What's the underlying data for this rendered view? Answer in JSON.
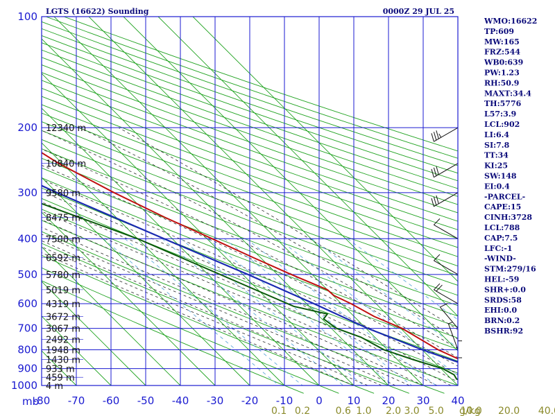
{
  "header": {
    "station": "LGTS (16622) Sounding",
    "time": "0000Z 29 JUL 25"
  },
  "indices": [
    "WMO:16622",
    "TP:609",
    "MW:165",
    "FRZ:544",
    "WB0:639",
    "PW:1.23",
    "RH:50.9",
    "MAXT:34.4",
    "TH:5776",
    "L57:3.9",
    "LCL:902",
    "LI:6.4",
    "SI:7.8",
    "TT:34",
    "KI:25",
    "SW:148",
    "EI:0.4",
    "-PARCEL-",
    "CAPE:15",
    "CINH:3728",
    "LCL:788",
    "CAP:7.5",
    "LFC:-1",
    "-WIND-",
    "STM:279/16",
    "HEL:-59",
    "SHR+:0.0",
    "SRDS:58",
    "EHI:0.0",
    "BRN:0.2",
    "BSHR:92"
  ],
  "colors": {
    "grid": "#1a1ad0",
    "dry_adiabat": "#1fa21f",
    "moist_adiabat": "#2a2a2a",
    "mixing_ratio": "#5fa8d8",
    "temperature": "#c01010",
    "dewpoint": "#0a5a0a",
    "parcel": "#1a2ab0",
    "text": "#0b0b7a"
  },
  "chart_data": {
    "type": "skew-t",
    "title": "LGTS (16622) Sounding",
    "pressure_unit_label": "mb",
    "pressure_levels": [
      100,
      200,
      300,
      400,
      500,
      600,
      700,
      800,
      900,
      1000
    ],
    "pressure_tick_labels": [
      "100",
      "200",
      "300",
      "400",
      "500",
      "600",
      "700",
      "800",
      "900",
      "1000"
    ],
    "pressure_range": [
      100,
      1000
    ],
    "temperature_ticks": [
      -80,
      -70,
      -60,
      -50,
      -40,
      -30,
      -20,
      -10,
      0,
      10,
      20,
      30,
      40
    ],
    "temperature_tick_labels": [
      "-80",
      "-70",
      "-60",
      "-50",
      "-40",
      "-30",
      "-20",
      "-10",
      "0",
      "10",
      "20",
      "30",
      "40"
    ],
    "mixing_ratio_labels": [
      "0.1",
      "0.2",
      "0.6",
      "1.0",
      "2.0",
      "3.0",
      "5.0",
      "10.0",
      "20.0",
      "40.0"
    ],
    "mixing_ratio_unit": "g/kg",
    "height_labels": [
      {
        "p": 200,
        "text": "12340 m"
      },
      {
        "p": 250,
        "text": "10840 m"
      },
      {
        "p": 300,
        "text": "9580 m"
      },
      {
        "p": 350,
        "text": "8475 m"
      },
      {
        "p": 400,
        "text": "7500 m"
      },
      {
        "p": 450,
        "text": "6592 m"
      },
      {
        "p": 500,
        "text": "5780 m"
      },
      {
        "p": 550,
        "text": "5019 m"
      },
      {
        "p": 600,
        "text": "4319 m"
      },
      {
        "p": 650,
        "text": "3672 m"
      },
      {
        "p": 700,
        "text": "3067 m"
      },
      {
        "p": 750,
        "text": "2492 m"
      },
      {
        "p": 800,
        "text": "1948 m"
      },
      {
        "p": 850,
        "text": "1430 m"
      },
      {
        "p": 900,
        "text": "933 m"
      },
      {
        "p": 950,
        "text": "459 m"
      },
      {
        "p": 1000,
        "text": "4 m"
      }
    ],
    "temperature": [
      {
        "p": 1003,
        "t": 20.0
      },
      {
        "p": 997,
        "t": 26.4
      },
      {
        "p": 950,
        "t": 25.5
      },
      {
        "p": 925,
        "t": 25.2
      },
      {
        "p": 850,
        "t": 18.0
      },
      {
        "p": 800,
        "t": 14.6
      },
      {
        "p": 700,
        "t": 10.4
      },
      {
        "p": 650,
        "t": 5.8
      },
      {
        "p": 600,
        "t": 2.8
      },
      {
        "p": 570,
        "t": 0.2
      },
      {
        "p": 550,
        "t": 0.0
      },
      {
        "p": 500,
        "t": -6.0
      },
      {
        "p": 450,
        "t": -12.1
      },
      {
        "p": 400,
        "t": -18.5
      },
      {
        "p": 350,
        "t": -26.0
      },
      {
        "p": 300,
        "t": -33.5
      },
      {
        "p": 250,
        "t": -41.0
      },
      {
        "p": 230,
        "t": -43.3
      },
      {
        "p": 210,
        "t": -45.6
      },
      {
        "p": 200,
        "t": -46.8
      },
      {
        "p": 180,
        "t": -51.5
      },
      {
        "p": 160,
        "t": -55.2
      },
      {
        "p": 150,
        "t": -57.3
      }
    ],
    "dewpoint": [
      {
        "p": 1000,
        "t": 16.0
      },
      {
        "p": 960,
        "t": 11.5
      },
      {
        "p": 935,
        "t": 12.0
      },
      {
        "p": 900,
        "t": 10.5
      },
      {
        "p": 850,
        "t": 4.5
      },
      {
        "p": 800,
        "t": -1.0
      },
      {
        "p": 740,
        "t": -4.0
      },
      {
        "p": 700,
        "t": -8.5
      },
      {
        "p": 660,
        "t": -9.5
      },
      {
        "p": 640,
        "t": -7.0
      },
      {
        "p": 610,
        "t": -14.5
      },
      {
        "p": 400,
        "t": -40.0
      },
      {
        "p": 300,
        "t": -63.0
      },
      {
        "p": 250,
        "t": -74.0
      },
      {
        "p": 220,
        "t": -82.0
      },
      {
        "p": 200,
        "t": -88.0
      }
    ],
    "parcel": [
      {
        "p": 1000,
        "t": 30.0
      },
      {
        "p": 900,
        "t": 20.4
      },
      {
        "p": 800,
        "t": 10.0
      },
      {
        "p": 700,
        "t": 0.5
      },
      {
        "p": 600,
        "t": -7.9
      },
      {
        "p": 500,
        "t": -18.5
      },
      {
        "p": 400,
        "t": -32.4
      },
      {
        "p": 300,
        "t": -50.0
      },
      {
        "p": 200,
        "t": -72.0
      },
      {
        "p": 150,
        "t": -85.0
      }
    ],
    "wind_barbs": [
      {
        "p": 200,
        "dir": 240,
        "kt": 35
      },
      {
        "p": 250,
        "dir": 240,
        "kt": 30
      },
      {
        "p": 300,
        "dir": 240,
        "kt": 30
      },
      {
        "p": 400,
        "dir": 300,
        "kt": 10
      },
      {
        "p": 500,
        "dir": 300,
        "kt": 10
      },
      {
        "p": 600,
        "dir": 300,
        "kt": 20
      },
      {
        "p": 700,
        "dir": 320,
        "kt": 10
      },
      {
        "p": 800,
        "dir": 340,
        "kt": 5
      },
      {
        "p": 900,
        "dir": 0,
        "kt": 5
      },
      {
        "p": 1000,
        "dir": 0,
        "kt": 5
      }
    ]
  }
}
